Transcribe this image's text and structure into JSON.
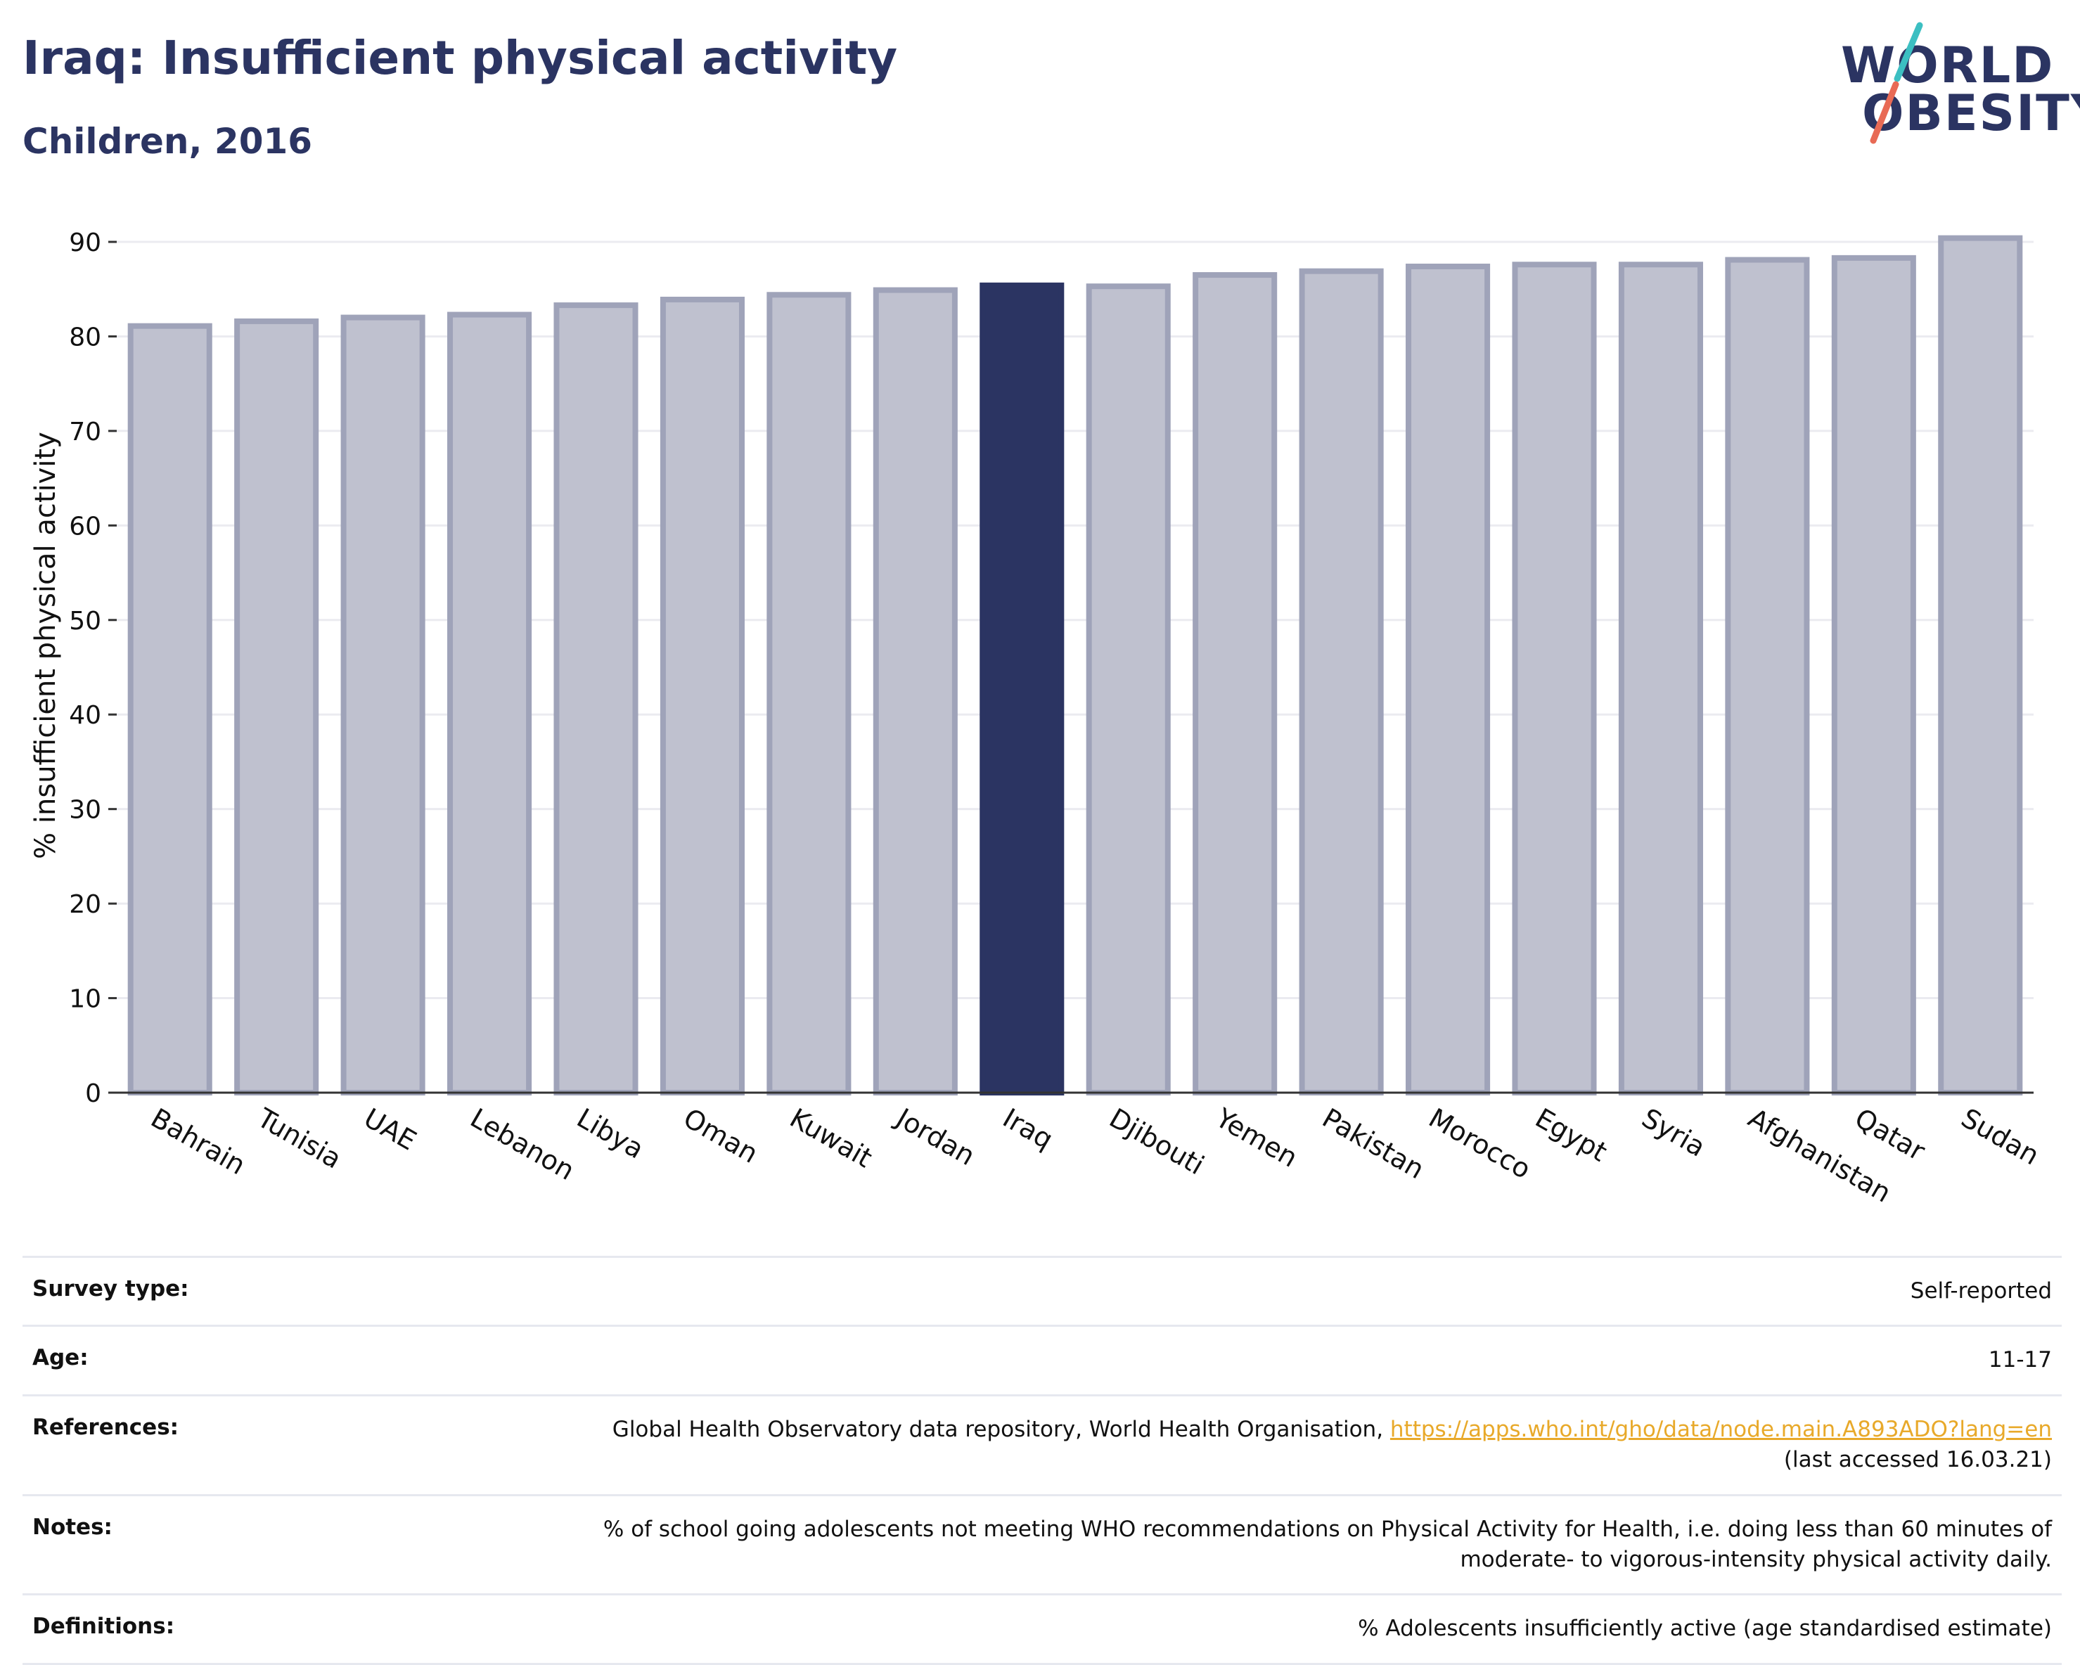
{
  "header": {
    "title": "Iraq: Insufficient physical activity",
    "subtitle": "Children, 2016"
  },
  "logo": {
    "line1": "WORLD",
    "line2": "OBESITY",
    "accent_colors": [
      "#3cbfc2",
      "#e86a55"
    ]
  },
  "chart_data": {
    "type": "bar",
    "ylabel": "% insufficient physical activity",
    "ylim": [
      0,
      90
    ],
    "yticks": [
      0,
      10,
      20,
      30,
      40,
      50,
      60,
      70,
      80,
      90
    ],
    "grid": true,
    "categories": [
      "Bahrain",
      "Tunisia",
      "UAE",
      "Lebanon",
      "Libya",
      "Oman",
      "Kuwait",
      "Jordan",
      "Iraq",
      "Djibouti",
      "Yemen",
      "Pakistan",
      "Morocco",
      "Egypt",
      "Syria",
      "Afghanistan",
      "Qatar",
      "Sudan"
    ],
    "values": [
      81.1,
      81.6,
      82.0,
      82.3,
      83.3,
      83.9,
      84.4,
      84.9,
      85.4,
      85.3,
      86.5,
      86.9,
      87.4,
      87.6,
      87.6,
      88.1,
      88.3,
      90.4
    ],
    "highlight": "Iraq",
    "colors": {
      "default_fill": "#bfc1cf",
      "default_stroke": "#9fa3b9",
      "highlight_fill": "#2b3462",
      "axis": "#333333",
      "grid": "#ebebf0"
    }
  },
  "info": {
    "rows": [
      {
        "key": "Survey type:",
        "value": "Self-reported"
      },
      {
        "key": "Age:",
        "value": "11-17"
      },
      {
        "key": "References:",
        "value": "Global Health Observatory data repository, World Health Organisation, ",
        "link": "https://apps.who.int/gho/data/node.main.A893ADO?lang=en",
        "value2": "(last accessed 16.03.21)"
      },
      {
        "key": "Notes:",
        "value": "% of school going adolescents not meeting WHO recommendations on Physical Activity for Health, i.e. doing less than 60 minutes of",
        "value2": "moderate- to vigorous-intensity physical activity daily."
      },
      {
        "key": "Definitions:",
        "value": "% Adolescents insufficiently active (age standardised estimate)"
      }
    ]
  }
}
